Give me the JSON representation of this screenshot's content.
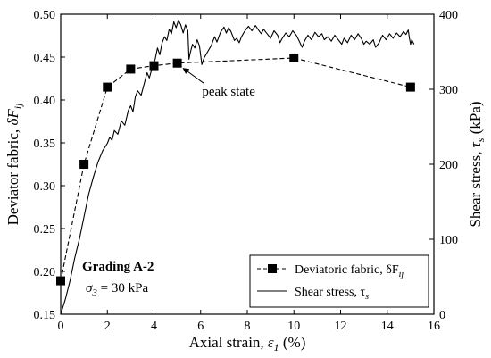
{
  "chart_data": {
    "type": "line",
    "title": "",
    "xlabel": {
      "prefix": "Axial strain, ",
      "symbol": "ε",
      "sub": "1",
      "suffix": " (%)"
    },
    "ylabel_left": {
      "prefix": "Deviator fabric, ",
      "symbol": "δF",
      "sub": "ij"
    },
    "ylabel_right": {
      "prefix": "Shear stress, ",
      "symbol": "τ",
      "sub": "s",
      "suffix": " (kPa)"
    },
    "xlim": [
      0,
      16
    ],
    "ylim_left": [
      0.15,
      0.5
    ],
    "ylim_right": [
      0,
      400
    ],
    "x_ticks": [
      "0",
      "2",
      "4",
      "6",
      "8",
      "10",
      "12",
      "14",
      "16"
    ],
    "y_left_ticks": [
      "0.15",
      "0.20",
      "0.25",
      "0.30",
      "0.35",
      "0.40",
      "0.45",
      "0.50"
    ],
    "y_right_ticks": [
      "0",
      "100",
      "200",
      "300",
      "400"
    ],
    "grid": false,
    "legend_position": "bottom-right",
    "series": [
      {
        "name": "Deviatoric fabric, δF",
        "name_sub": "ij",
        "axis": "left",
        "style": "dashed-square-markers",
        "color": "#000000",
        "points": [
          [
            0,
            0.189
          ],
          [
            1,
            0.325
          ],
          [
            2,
            0.415
          ],
          [
            3,
            0.436
          ],
          [
            4,
            0.44
          ],
          [
            5,
            0.443
          ],
          [
            10,
            0.449
          ],
          [
            15,
            0.415
          ]
        ]
      },
      {
        "name": "Shear stress, τ",
        "name_sub": "s",
        "axis": "right",
        "style": "solid",
        "color": "#000000",
        "points": [
          [
            0,
            0
          ],
          [
            0.2,
            20
          ],
          [
            0.4,
            45
          ],
          [
            0.6,
            75
          ],
          [
            0.8,
            100
          ],
          [
            1.0,
            130
          ],
          [
            1.2,
            160
          ],
          [
            1.4,
            183
          ],
          [
            1.6,
            203
          ],
          [
            1.8,
            218
          ],
          [
            2.0,
            228
          ],
          [
            2.1,
            236
          ],
          [
            2.2,
            232
          ],
          [
            2.3,
            245
          ],
          [
            2.45,
            240
          ],
          [
            2.6,
            258
          ],
          [
            2.75,
            252
          ],
          [
            2.9,
            272
          ],
          [
            3.0,
            278
          ],
          [
            3.1,
            270
          ],
          [
            3.2,
            290
          ],
          [
            3.3,
            298
          ],
          [
            3.45,
            292
          ],
          [
            3.6,
            310
          ],
          [
            3.7,
            322
          ],
          [
            3.8,
            315
          ],
          [
            3.95,
            332
          ],
          [
            4.05,
            340
          ],
          [
            4.15,
            355
          ],
          [
            4.25,
            346
          ],
          [
            4.35,
            362
          ],
          [
            4.45,
            370
          ],
          [
            4.55,
            365
          ],
          [
            4.65,
            380
          ],
          [
            4.75,
            374
          ],
          [
            4.85,
            390
          ],
          [
            4.95,
            382
          ],
          [
            5.05,
            392
          ],
          [
            5.15,
            386
          ],
          [
            5.25,
            375
          ],
          [
            5.35,
            386
          ],
          [
            5.45,
            378
          ],
          [
            5.5,
            340
          ],
          [
            5.55,
            348
          ],
          [
            5.65,
            360
          ],
          [
            5.75,
            355
          ],
          [
            5.85,
            366
          ],
          [
            5.95,
            358
          ],
          [
            6.05,
            333
          ],
          [
            6.15,
            342
          ],
          [
            6.3,
            350
          ],
          [
            6.45,
            358
          ],
          [
            6.6,
            370
          ],
          [
            6.7,
            363
          ],
          [
            6.85,
            376
          ],
          [
            7.0,
            383
          ],
          [
            7.1,
            375
          ],
          [
            7.2,
            382
          ],
          [
            7.3,
            377
          ],
          [
            7.45,
            365
          ],
          [
            7.55,
            368
          ],
          [
            7.65,
            362
          ],
          [
            7.75,
            370
          ],
          [
            7.9,
            378
          ],
          [
            8.05,
            384
          ],
          [
            8.2,
            378
          ],
          [
            8.35,
            385
          ],
          [
            8.5,
            378
          ],
          [
            8.6,
            374
          ],
          [
            8.7,
            380
          ],
          [
            8.85,
            374
          ],
          [
            9.0,
            368
          ],
          [
            9.15,
            378
          ],
          [
            9.3,
            372
          ],
          [
            9.4,
            362
          ],
          [
            9.5,
            368
          ],
          [
            9.65,
            375
          ],
          [
            9.8,
            370
          ],
          [
            9.95,
            378
          ],
          [
            10.1,
            372
          ],
          [
            10.2,
            366
          ],
          [
            10.35,
            356
          ],
          [
            10.45,
            364
          ],
          [
            10.6,
            372
          ],
          [
            10.75,
            366
          ],
          [
            10.9,
            376
          ],
          [
            11.05,
            370
          ],
          [
            11.2,
            374
          ],
          [
            11.3,
            366
          ],
          [
            11.45,
            370
          ],
          [
            11.6,
            364
          ],
          [
            11.75,
            372
          ],
          [
            11.9,
            366
          ],
          [
            12.05,
            360
          ],
          [
            12.15,
            368
          ],
          [
            12.3,
            362
          ],
          [
            12.45,
            372
          ],
          [
            12.6,
            366
          ],
          [
            12.75,
            374
          ],
          [
            12.9,
            367
          ],
          [
            13.0,
            360
          ],
          [
            13.1,
            364
          ],
          [
            13.25,
            360
          ],
          [
            13.4,
            366
          ],
          [
            13.5,
            356
          ],
          [
            13.65,
            362
          ],
          [
            13.8,
            372
          ],
          [
            13.95,
            366
          ],
          [
            14.1,
            374
          ],
          [
            14.25,
            368
          ],
          [
            14.4,
            375
          ],
          [
            14.55,
            370
          ],
          [
            14.7,
            377
          ],
          [
            14.8,
            373
          ],
          [
            14.9,
            379
          ],
          [
            14.95,
            368
          ],
          [
            15.0,
            360
          ],
          [
            15.05,
            366
          ],
          [
            15.15,
            360
          ]
        ]
      }
    ],
    "annotations": {
      "peak_label": "peak state",
      "peak_arrow_target": [
        5.25,
        0.437
      ],
      "peak_label_at": [
        7.2,
        0.405
      ],
      "grading": "Grading A-2",
      "confining": {
        "symbol": "σ",
        "sub": "3",
        "text": " = 30 kPa"
      }
    }
  }
}
